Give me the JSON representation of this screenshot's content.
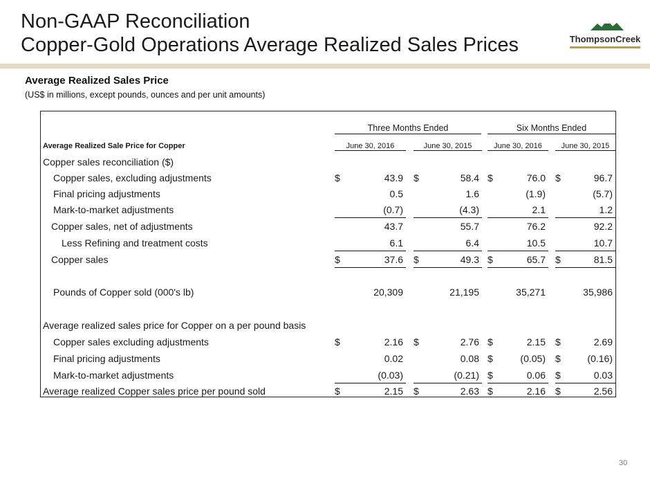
{
  "title_line1": "Non-GAAP Reconciliation",
  "title_line2": "Copper-Gold Operations Average Realized Sales Prices",
  "logo_text": "ThompsonCreek",
  "section_title": "Average Realized Sales Price",
  "subtitle": "(US$ in millions, except pounds, ounces and per unit amounts)",
  "groups": [
    "Three Months Ended",
    "Six Months Ended"
  ],
  "row_header_label": "Average Realized Sale Price for Copper",
  "columns": [
    "June 30, 2016",
    "June 30, 2015",
    "June 30, 2016",
    "June 30, 2015"
  ],
  "rows": [
    {
      "label": "Copper sales reconciliation ($)",
      "values": [
        "",
        "",
        "",
        ""
      ],
      "dollar": [
        false,
        false,
        false,
        false
      ]
    },
    {
      "label": "Copper sales, excluding adjustments",
      "values": [
        "43.9",
        "58.4",
        "76.0",
        "96.7"
      ],
      "dollar": [
        true,
        true,
        true,
        true
      ]
    },
    {
      "label": "Final pricing adjustments",
      "values": [
        "0.5",
        "1.6",
        "(1.9)",
        "(5.7)"
      ],
      "dollar": [
        false,
        false,
        false,
        false
      ]
    },
    {
      "label": "Mark-to-market adjustments",
      "values": [
        "(0.7)",
        "(4.3)",
        "2.1",
        "1.2"
      ],
      "dollar": [
        false,
        false,
        false,
        false
      ]
    },
    {
      "label": "Copper sales, net of adjustments",
      "values": [
        "43.7",
        "55.7",
        "76.2",
        "92.2"
      ],
      "dollar": [
        false,
        false,
        false,
        false
      ]
    },
    {
      "label": "Less Refining and treatment costs",
      "values": [
        "6.1",
        "6.4",
        "10.5",
        "10.7"
      ],
      "dollar": [
        false,
        false,
        false,
        false
      ]
    },
    {
      "label": "Copper sales",
      "values": [
        "37.6",
        "49.3",
        "65.7",
        "81.5"
      ],
      "dollar": [
        true,
        true,
        true,
        true
      ]
    },
    {
      "label": "Pounds of Copper sold (000's lb)",
      "values": [
        "20,309",
        "21,195",
        "35,271",
        "35,986"
      ],
      "dollar": [
        false,
        false,
        false,
        false
      ]
    },
    {
      "label": "Average realized sales price for Copper on a per pound basis",
      "values": [
        "",
        "",
        "",
        ""
      ],
      "dollar": [
        false,
        false,
        false,
        false
      ]
    },
    {
      "label": "Copper sales excluding adjustments",
      "values": [
        "2.16",
        "2.76",
        "2.15",
        "2.69"
      ],
      "dollar": [
        true,
        true,
        true,
        true
      ]
    },
    {
      "label": "Final pricing adjustments",
      "values": [
        "0.02",
        "0.08",
        "(0.05)",
        "(0.16)"
      ],
      "dollar": [
        false,
        false,
        true,
        true
      ]
    },
    {
      "label": "Mark-to-market adjustments",
      "values": [
        "(0.03)",
        "(0.21)",
        "0.06",
        "0.03"
      ],
      "dollar": [
        false,
        false,
        true,
        true
      ]
    },
    {
      "label": "Average realized Copper sales price per pound sold",
      "values": [
        "2.15",
        "2.63",
        "2.16",
        "2.56"
      ],
      "dollar": [
        true,
        true,
        true,
        true
      ]
    }
  ],
  "page_number": "30"
}
